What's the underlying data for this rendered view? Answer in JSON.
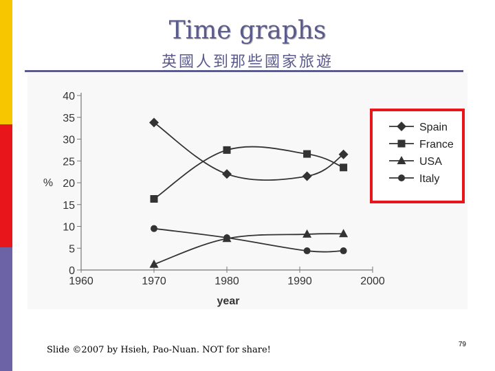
{
  "slide": {
    "title": "Time graphs",
    "subtitle": "英國人到那些國家旅遊",
    "footer": "Slide ©2007 by Hsieh, Pao-Nuan. NOT for share!",
    "page_number": "79"
  },
  "colors": {
    "title": "#5a5a8c",
    "legend_box": "#e8151b",
    "series": "#333333"
  },
  "chart_data": {
    "type": "line",
    "title": "",
    "xlabel": "year",
    "ylabel": "%",
    "xlim": [
      1960,
      2000
    ],
    "ylim": [
      0,
      40
    ],
    "xticks": [
      1960,
      1970,
      1980,
      1990,
      2000
    ],
    "yticks": [
      0,
      5,
      10,
      15,
      20,
      25,
      30,
      35,
      40
    ],
    "grid": false,
    "legend_position": "top-right",
    "series": [
      {
        "name": "Spain",
        "marker": "diamond",
        "x": [
          1970,
          1980,
          1991,
          1996
        ],
        "y": [
          33.8,
          22,
          21.5,
          26.5
        ]
      },
      {
        "name": "France",
        "marker": "square",
        "x": [
          1970,
          1980,
          1991,
          1996
        ],
        "y": [
          16.3,
          27.5,
          26.6,
          23.5
        ]
      },
      {
        "name": "USA",
        "marker": "triangle",
        "x": [
          1970,
          1980,
          1991,
          1996
        ],
        "y": [
          1.3,
          7.2,
          8.2,
          8.3
        ]
      },
      {
        "name": "Italy",
        "marker": "circle",
        "x": [
          1970,
          1980,
          1991,
          1996
        ],
        "y": [
          9.5,
          7.4,
          4.4,
          4.4
        ]
      }
    ]
  }
}
